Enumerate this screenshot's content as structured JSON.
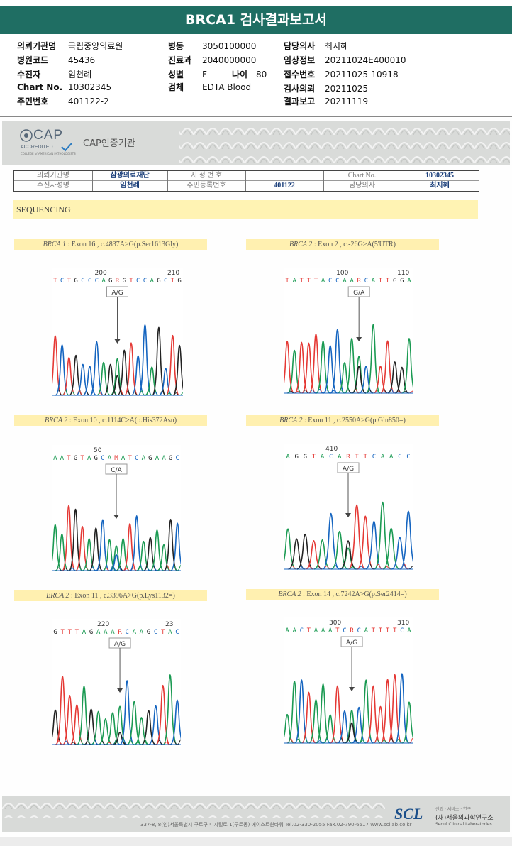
{
  "title": "BRCA1 검사결과보고서",
  "header": {
    "col1": [
      {
        "k": "의뢰기관명",
        "v": "국립중앙의료원"
      },
      {
        "k": "병원코드",
        "v": "45436"
      },
      {
        "k": "수진자",
        "v": "임천례"
      },
      {
        "k": "Chart No.",
        "v": "10302345"
      },
      {
        "k": "주민번호",
        "v": "401122-2"
      }
    ],
    "col2": [
      {
        "k": "병동",
        "v": "3050100000"
      },
      {
        "k": "진료과",
        "v": "2040000000"
      },
      {
        "k": "성별",
        "v": "F"
      },
      {
        "k": "검체",
        "v": "EDTA Blood"
      }
    ],
    "age_label": "나이",
    "age_value": "80",
    "col3": [
      {
        "k": "담당의사",
        "v": "최지혜"
      },
      {
        "k": "임상정보",
        "v": "20211024E400010"
      },
      {
        "k": "접수번호",
        "v": "20211025-10918"
      },
      {
        "k": "검사의뢰",
        "v": "20211025"
      },
      {
        "k": "결과보고",
        "v": "20211119"
      }
    ]
  },
  "cap": {
    "logo_text": "CAP",
    "logo_sub": "ACCREDITED",
    "logo_tiny": "COLLEGE of AMERICAN PATHOLOGISTS",
    "name": "CAP인증기관"
  },
  "info_table": {
    "r1": [
      "의뢰기관명",
      "삼광의료재단",
      "지 정 번 호",
      "",
      "Chart No.",
      "10302345"
    ],
    "r2": [
      "수신자성명",
      "임천례",
      "주민등록번호",
      "401122",
      "담당의사",
      "최지혜"
    ]
  },
  "section_title": "SEQUENCING",
  "panels": [
    {
      "gene": "BRCA 1",
      "desc": " : Exon 16 , c.4837A>G(p.Ser1613Gly)",
      "seq": "TCTGCCCAGRGTCCAGCTG",
      "pos_left": "200",
      "pos_right": "210",
      "call": "A/G"
    },
    {
      "gene": "BRCA 2",
      "desc": " : Exon 2 , c.-26G>A(5'UTR)",
      "seq": "TATTTACCAARCATTGGA",
      "pos_left": "100",
      "pos_right": "110",
      "call": "G/A"
    },
    {
      "gene": "BRCA 2",
      "desc": " : Exon 10 , c.1114C>A(p.His372Asn)",
      "seq": "AATGTAGCAMATCAGAAGC",
      "pos_left": "50",
      "pos_right": "",
      "call": "C/A"
    },
    {
      "gene": "BRCA 2",
      "desc": " : Exon 11 , c.2550A>G(p.Gln850=)",
      "seq": "AGGTACARTTCAACC",
      "pos_left": "410",
      "pos_right": "",
      "call": "A/G"
    },
    {
      "gene": "BRCA 2",
      "desc": " : Exon 11 , c.3396A>G(p.Lys1132=)",
      "seq": "GTTTAGAAARCAAGCTAC",
      "pos_left": "220",
      "pos_right": "23",
      "call": "A/G"
    },
    {
      "gene": "BRCA 2",
      "desc": " : Exon 14 , c.7242A>G(p.Ser2414=)",
      "seq": "AACTAAATCRCATTTTCA",
      "pos_left": "300",
      "pos_right": "310",
      "call": "A/G"
    }
  ],
  "footer": {
    "address": "337-8, 8(인)서울특별시 구로구 디지털로 1(구로동) 에이스트윈타워 Tel.02-330-2055  Fax.02-790-6517  www.scllab.co.kr",
    "logo": "SCL",
    "slogan": "신뢰 · 서비스 · 연구",
    "name_ko": "(재)서울의과학연구소",
    "name_en": "Seoul Clinical Laboratories"
  },
  "colors": {
    "title_bg": "#1f6e63",
    "A": "#1a9a52",
    "C": "#1565c0",
    "G": "#222222",
    "T": "#e53935"
  }
}
